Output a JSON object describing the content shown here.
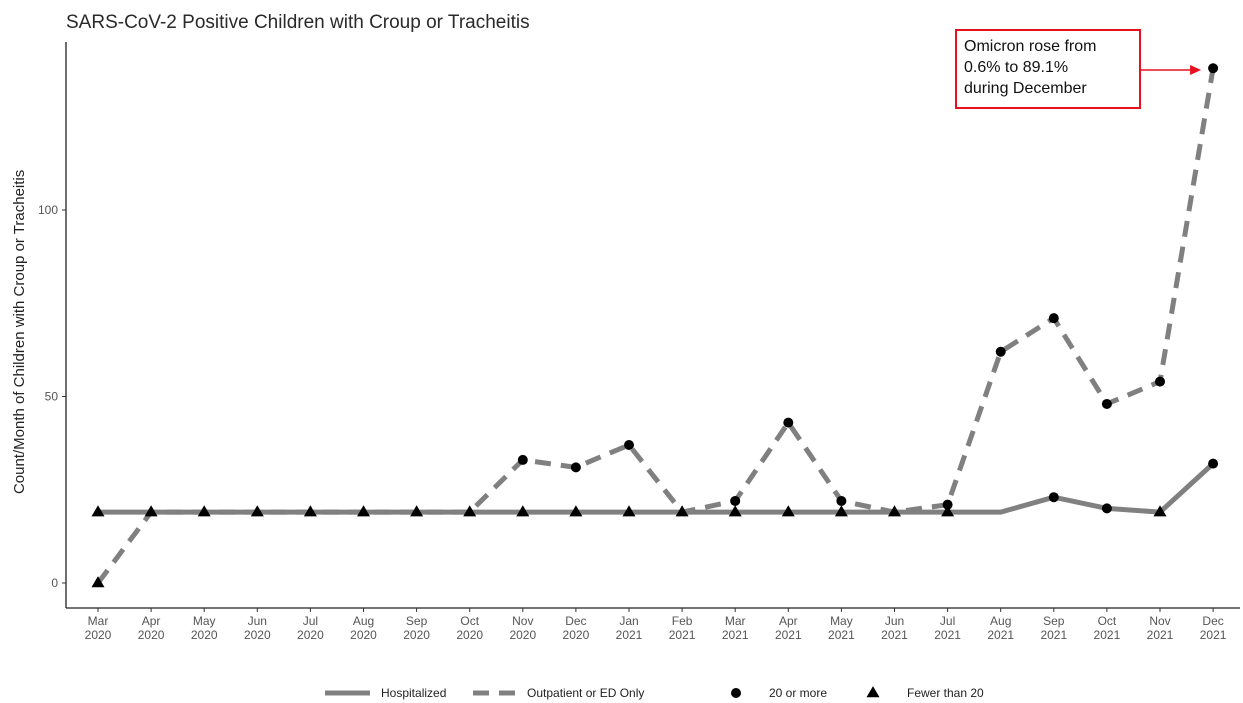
{
  "chart_data": {
    "type": "line",
    "title": "SARS-CoV-2 Positive Children with Croup or Tracheitis",
    "ylabel": "Count/Month of Children with Croup or Tracheitis",
    "xlabel": "",
    "ylim": [
      0,
      140
    ],
    "yticks": [
      0,
      50,
      100
    ],
    "grid": false,
    "categories": [
      "Mar 2020",
      "Apr 2020",
      "May 2020",
      "Jun 2020",
      "Jul 2020",
      "Aug 2020",
      "Sep 2020",
      "Oct 2020",
      "Nov 2020",
      "Dec 2020",
      "Jan 2021",
      "Feb 2021",
      "Mar 2021",
      "Apr 2021",
      "May 2021",
      "Jun 2021",
      "Jul 2021",
      "Aug 2021",
      "Sep 2021",
      "Oct 2021",
      "Nov 2021",
      "Dec 2021"
    ],
    "tick_labels": [
      {
        "month": "Mar",
        "year": "2020"
      },
      {
        "month": "Apr",
        "year": "2020"
      },
      {
        "month": "May",
        "year": "2020"
      },
      {
        "month": "Jun",
        "year": "2020"
      },
      {
        "month": "Jul",
        "year": "2020"
      },
      {
        "month": "Aug",
        "year": "2020"
      },
      {
        "month": "Sep",
        "year": "2020"
      },
      {
        "month": "Oct",
        "year": "2020"
      },
      {
        "month": "Nov",
        "year": "2020"
      },
      {
        "month": "Dec",
        "year": "2020"
      },
      {
        "month": "Jan",
        "year": "2021"
      },
      {
        "month": "Feb",
        "year": "2021"
      },
      {
        "month": "Mar",
        "year": "2021"
      },
      {
        "month": "Apr",
        "year": "2021"
      },
      {
        "month": "May",
        "year": "2021"
      },
      {
        "month": "Jun",
        "year": "2021"
      },
      {
        "month": "Jul",
        "year": "2021"
      },
      {
        "month": "Aug",
        "year": "2021"
      },
      {
        "month": "Sep",
        "year": "2021"
      },
      {
        "month": "Oct",
        "year": "2021"
      },
      {
        "month": "Nov",
        "year": "2021"
      },
      {
        "month": "Dec",
        "year": "2021"
      }
    ],
    "series": [
      {
        "name": "Hospitalized",
        "style": "solid",
        "color": "#808080",
        "values": [
          19,
          19,
          19,
          19,
          19,
          19,
          19,
          19,
          19,
          19,
          19,
          19,
          19,
          19,
          19,
          19,
          19,
          19,
          23,
          20,
          19,
          32
        ],
        "markers": [
          "tri",
          "tri",
          "tri",
          "tri",
          "tri",
          "tri",
          "tri",
          "tri",
          "tri",
          "tri",
          "tri",
          "tri",
          "tri",
          "tri",
          "tri",
          "tri",
          "tri",
          "none",
          "circle",
          "circle",
          "tri",
          "circle"
        ]
      },
      {
        "name": "Outpatient or ED Only",
        "style": "dashed",
        "color": "#808080",
        "values": [
          0,
          19,
          19,
          19,
          19,
          19,
          19,
          19,
          33,
          31,
          37,
          19,
          22,
          43,
          22,
          19,
          21,
          62,
          71,
          48,
          54,
          138
        ],
        "markers": [
          "tri",
          "none",
          "none",
          "none",
          "none",
          "none",
          "none",
          "none",
          "circle",
          "circle",
          "circle",
          "none",
          "circle",
          "circle",
          "circle",
          "none",
          "circle",
          "circle",
          "circle",
          "circle",
          "circle",
          "circle"
        ]
      }
    ],
    "legend": {
      "placement": "bottom",
      "items": [
        {
          "label": "Hospitalized",
          "kind": "solid-line"
        },
        {
          "label": "Outpatient or ED Only",
          "kind": "dashed-line"
        },
        {
          "label": "20 or more",
          "kind": "circle"
        },
        {
          "label": "Fewer than 20",
          "kind": "triangle"
        }
      ]
    },
    "annotation": {
      "lines": [
        "Omicron rose from",
        "0.6% to 89.1%",
        "during December"
      ],
      "points_to": "Dec 2021",
      "color": "#e8101e"
    }
  }
}
